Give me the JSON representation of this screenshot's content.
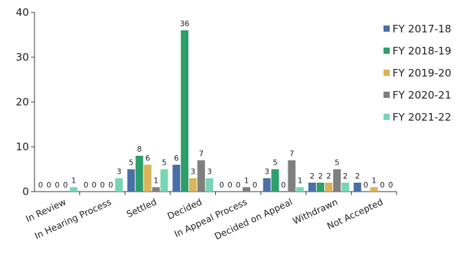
{
  "chart_data": {
    "type": "bar",
    "title": "",
    "xlabel": "",
    "ylabel": "",
    "ylim": [
      0,
      40
    ],
    "yticks": [
      0,
      10,
      20,
      30,
      40
    ],
    "grid": false,
    "legend_position": "right",
    "categories": [
      "In Review",
      "In Hearing Process",
      "Settled",
      "Decided",
      "In Appeal Process",
      "Decided on Appeal",
      "Withdrawn",
      "Not Accepted"
    ],
    "series": [
      {
        "name": "FY 2017-18",
        "color": "#4a6fa5",
        "values": [
          0,
          0,
          5,
          6,
          0,
          3,
          2,
          2
        ]
      },
      {
        "name": "FY 2018-19",
        "color": "#2e9e6b",
        "values": [
          0,
          0,
          8,
          36,
          0,
          5,
          2,
          0
        ]
      },
      {
        "name": "FY 2019-20",
        "color": "#d9b45a",
        "values": [
          0,
          0,
          6,
          3,
          0,
          0,
          2,
          1
        ]
      },
      {
        "name": "FY 2020-21",
        "color": "#7f7f7f",
        "values": [
          0,
          0,
          1,
          7,
          1,
          7,
          5,
          0
        ]
      },
      {
        "name": "FY 2021-22",
        "color": "#76d6b4",
        "values": [
          1,
          3,
          5,
          3,
          0,
          1,
          2,
          0
        ]
      }
    ]
  }
}
